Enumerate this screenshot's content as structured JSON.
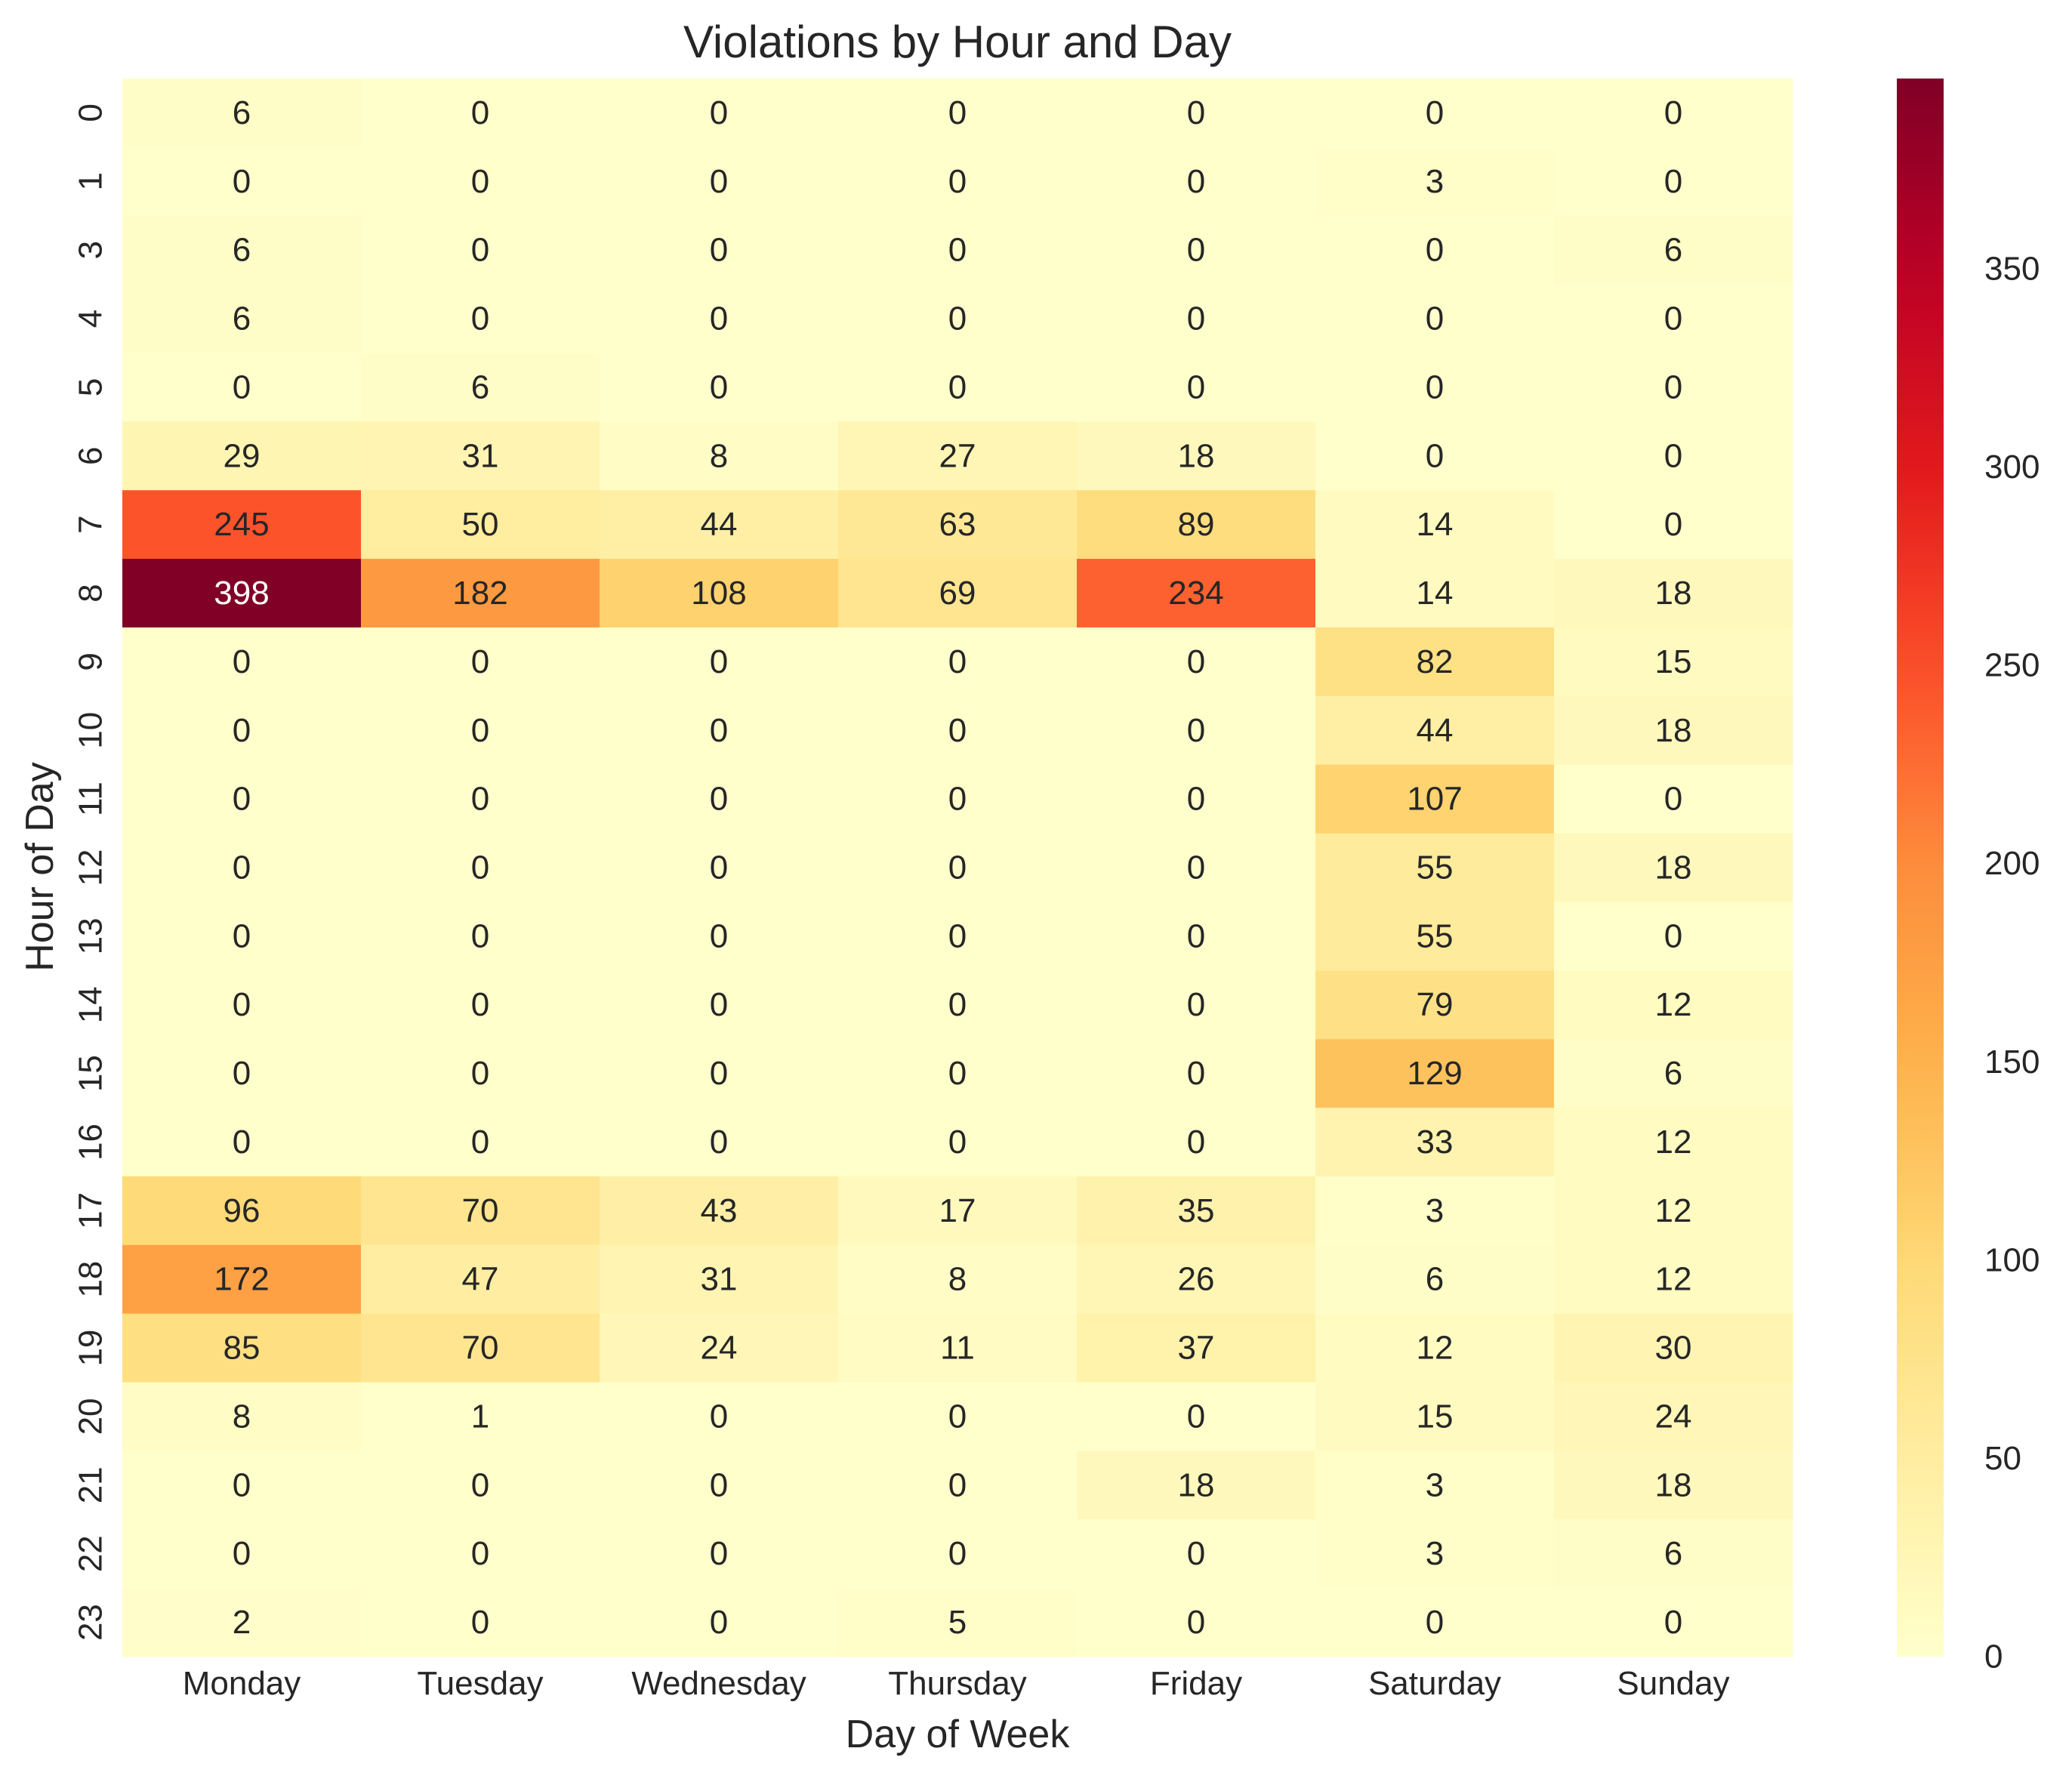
{
  "chart_data": {
    "type": "heatmap",
    "title": "Violations by Hour and Day",
    "xlabel": "Day of Week",
    "ylabel": "Hour of Day",
    "x_categories": [
      "Monday",
      "Tuesday",
      "Wednesday",
      "Thursday",
      "Friday",
      "Saturday",
      "Sunday"
    ],
    "y_categories": [
      "0",
      "1",
      "3",
      "4",
      "5",
      "6",
      "7",
      "8",
      "9",
      "10",
      "11",
      "12",
      "13",
      "14",
      "15",
      "16",
      "17",
      "18",
      "19",
      "20",
      "21",
      "22",
      "23"
    ],
    "values": [
      [
        6,
        0,
        0,
        0,
        0,
        0,
        0
      ],
      [
        0,
        0,
        0,
        0,
        0,
        3,
        0
      ],
      [
        6,
        0,
        0,
        0,
        0,
        0,
        6
      ],
      [
        6,
        0,
        0,
        0,
        0,
        0,
        0
      ],
      [
        0,
        6,
        0,
        0,
        0,
        0,
        0
      ],
      [
        29,
        31,
        8,
        27,
        18,
        0,
        0
      ],
      [
        245,
        50,
        44,
        63,
        89,
        14,
        0
      ],
      [
        398,
        182,
        108,
        69,
        234,
        14,
        18
      ],
      [
        0,
        0,
        0,
        0,
        0,
        82,
        15
      ],
      [
        0,
        0,
        0,
        0,
        0,
        44,
        18
      ],
      [
        0,
        0,
        0,
        0,
        0,
        107,
        0
      ],
      [
        0,
        0,
        0,
        0,
        0,
        55,
        18
      ],
      [
        0,
        0,
        0,
        0,
        0,
        55,
        0
      ],
      [
        0,
        0,
        0,
        0,
        0,
        79,
        12
      ],
      [
        0,
        0,
        0,
        0,
        0,
        129,
        6
      ],
      [
        0,
        0,
        0,
        0,
        0,
        33,
        12
      ],
      [
        96,
        70,
        43,
        17,
        35,
        3,
        12
      ],
      [
        172,
        47,
        31,
        8,
        26,
        6,
        12
      ],
      [
        85,
        70,
        24,
        11,
        37,
        12,
        30
      ],
      [
        8,
        1,
        0,
        0,
        0,
        15,
        24
      ],
      [
        0,
        0,
        0,
        0,
        18,
        3,
        18
      ],
      [
        0,
        0,
        0,
        0,
        0,
        3,
        6
      ],
      [
        2,
        0,
        0,
        5,
        0,
        0,
        0
      ]
    ],
    "colormap": "YlOrRd",
    "vmin": 0,
    "vmax": 398,
    "colorbar_ticks": [
      0,
      50,
      100,
      150,
      200,
      250,
      300,
      350
    ],
    "annotations": true
  }
}
